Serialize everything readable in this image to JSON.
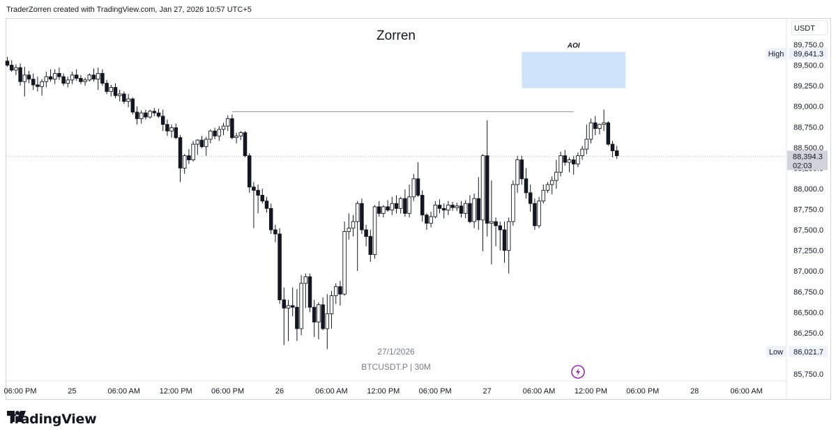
{
  "header": {
    "caption": "TraderZorren created with TradingView.com, Jan 27, 2026 10:57 UTC+5"
  },
  "footer": {
    "brand": "TradingView",
    "brand_icon": "tradingview-logo-icon"
  },
  "colors": {
    "candle": "#131722",
    "candle_up_fill": "#ffffff",
    "aoi_fill": "#cfe3fb",
    "price_tag_bg": "#d1d4dc",
    "level_line": "#8a8e99",
    "alert_icon": "#9c27b0"
  },
  "chart_data": {
    "type": "candlestick",
    "title": "Zorren",
    "symbol": "BTCUSDT.P | 30M",
    "date_label": "27/1/2026",
    "currency": "USDT",
    "ylim": [
      85600,
      89900
    ],
    "y_ticks": [
      "89,750.0",
      "89,500.0",
      "89,250.0",
      "89,000.0",
      "88,750.0",
      "88,500.0",
      "88,250.0",
      "88,000.0",
      "87,750.0",
      "87,500.0",
      "87,250.0",
      "87,000.0",
      "86,750.0",
      "86,500.0",
      "86,250.0",
      "86,000.0",
      "85,750.0"
    ],
    "y_tick_values": [
      89750,
      89500,
      89250,
      89000,
      88750,
      88500,
      88250,
      88000,
      87750,
      87500,
      87250,
      87000,
      86750,
      86500,
      86250,
      86000,
      85750
    ],
    "x_ticks": [
      "06:00 PM",
      "25",
      "06:00 AM",
      "12:00 PM",
      "06:00 PM",
      "26",
      "06:00 AM",
      "12:00 PM",
      "06:00 PM",
      "27",
      "06:00 AM",
      "12:00 PM",
      "06:00 PM",
      "28",
      "06:00 AM"
    ],
    "x_tick_index": [
      0,
      12,
      24,
      36,
      48,
      60,
      72,
      84,
      96,
      108,
      120,
      132,
      144,
      156,
      168
    ],
    "high": {
      "label": "High",
      "value": "89,641.3",
      "price": 89641.3
    },
    "low": {
      "label": "Low",
      "value": "86,021.7",
      "price": 86021.7
    },
    "last": {
      "value": "88,394.3",
      "countdown": "02:03",
      "price": 88394.3
    },
    "aoi": {
      "label": "AOI",
      "price_top": 89660,
      "price_bottom": 89220,
      "start_index": 119,
      "end_index": 143
    },
    "level_line": {
      "price": 88935,
      "start_index": 52,
      "end_index": 131
    },
    "candles": [
      {
        "o": 89550,
        "h": 89600,
        "l": 89480,
        "c": 89500
      },
      {
        "o": 89500,
        "h": 89560,
        "l": 89420,
        "c": 89440
      },
      {
        "o": 89440,
        "h": 89510,
        "l": 89380,
        "c": 89470
      },
      {
        "o": 89470,
        "h": 89520,
        "l": 89250,
        "c": 89300
      },
      {
        "o": 89300,
        "h": 89480,
        "l": 89120,
        "c": 89380
      },
      {
        "o": 89380,
        "h": 89430,
        "l": 89280,
        "c": 89330
      },
      {
        "o": 89330,
        "h": 89400,
        "l": 89200,
        "c": 89260
      },
      {
        "o": 89260,
        "h": 89360,
        "l": 89180,
        "c": 89240
      },
      {
        "o": 89240,
        "h": 89330,
        "l": 89130,
        "c": 89300
      },
      {
        "o": 89300,
        "h": 89420,
        "l": 89230,
        "c": 89360
      },
      {
        "o": 89360,
        "h": 89450,
        "l": 89300,
        "c": 89330
      },
      {
        "o": 89330,
        "h": 89450,
        "l": 89270,
        "c": 89400
      },
      {
        "o": 89400,
        "h": 89470,
        "l": 89320,
        "c": 89360
      },
      {
        "o": 89360,
        "h": 89400,
        "l": 89250,
        "c": 89280
      },
      {
        "o": 89280,
        "h": 89360,
        "l": 89230,
        "c": 89320
      },
      {
        "o": 89320,
        "h": 89420,
        "l": 89270,
        "c": 89380
      },
      {
        "o": 89380,
        "h": 89450,
        "l": 89310,
        "c": 89340
      },
      {
        "o": 89340,
        "h": 89380,
        "l": 89270,
        "c": 89300
      },
      {
        "o": 89300,
        "h": 89350,
        "l": 89250,
        "c": 89320
      },
      {
        "o": 89320,
        "h": 89400,
        "l": 89300,
        "c": 89380
      },
      {
        "o": 89380,
        "h": 89460,
        "l": 89300,
        "c": 89330
      },
      {
        "o": 89330,
        "h": 89470,
        "l": 89200,
        "c": 89400
      },
      {
        "o": 89400,
        "h": 89450,
        "l": 89250,
        "c": 89280
      },
      {
        "o": 89280,
        "h": 89320,
        "l": 89150,
        "c": 89180
      },
      {
        "o": 89180,
        "h": 89260,
        "l": 89120,
        "c": 89230
      },
      {
        "o": 89230,
        "h": 89280,
        "l": 89100,
        "c": 89130
      },
      {
        "o": 89130,
        "h": 89200,
        "l": 89060,
        "c": 89150
      },
      {
        "o": 89150,
        "h": 89180,
        "l": 89030,
        "c": 89060
      },
      {
        "o": 89060,
        "h": 89150,
        "l": 88990,
        "c": 89090
      },
      {
        "o": 89090,
        "h": 89110,
        "l": 88900,
        "c": 88930
      },
      {
        "o": 88930,
        "h": 89000,
        "l": 88780,
        "c": 88850
      },
      {
        "o": 88850,
        "h": 88950,
        "l": 88790,
        "c": 88920
      },
      {
        "o": 88920,
        "h": 88960,
        "l": 88840,
        "c": 88870
      },
      {
        "o": 88870,
        "h": 88960,
        "l": 88850,
        "c": 88940
      },
      {
        "o": 88940,
        "h": 88980,
        "l": 88880,
        "c": 88920
      },
      {
        "o": 88920,
        "h": 88970,
        "l": 88860,
        "c": 88880
      },
      {
        "o": 88880,
        "h": 88960,
        "l": 88700,
        "c": 88780
      },
      {
        "o": 88780,
        "h": 88840,
        "l": 88640,
        "c": 88700
      },
      {
        "o": 88700,
        "h": 88780,
        "l": 88620,
        "c": 88740
      },
      {
        "o": 88740,
        "h": 88790,
        "l": 88600,
        "c": 88620
      },
      {
        "o": 88620,
        "h": 88650,
        "l": 88080,
        "c": 88250
      },
      {
        "o": 88250,
        "h": 88420,
        "l": 88180,
        "c": 88400
      },
      {
        "o": 88400,
        "h": 88480,
        "l": 88300,
        "c": 88350
      },
      {
        "o": 88350,
        "h": 88580,
        "l": 88330,
        "c": 88540
      },
      {
        "o": 88540,
        "h": 88600,
        "l": 88410,
        "c": 88590
      },
      {
        "o": 88590,
        "h": 88640,
        "l": 88490,
        "c": 88510
      },
      {
        "o": 88510,
        "h": 88630,
        "l": 88400,
        "c": 88600
      },
      {
        "o": 88600,
        "h": 88720,
        "l": 88550,
        "c": 88700
      },
      {
        "o": 88700,
        "h": 88740,
        "l": 88600,
        "c": 88640
      },
      {
        "o": 88640,
        "h": 88760,
        "l": 88580,
        "c": 88720
      },
      {
        "o": 88720,
        "h": 88800,
        "l": 88650,
        "c": 88760
      },
      {
        "o": 88760,
        "h": 88890,
        "l": 88700,
        "c": 88850
      },
      {
        "o": 88850,
        "h": 88900,
        "l": 88600,
        "c": 88620
      },
      {
        "o": 88620,
        "h": 88680,
        "l": 88550,
        "c": 88640
      },
      {
        "o": 88640,
        "h": 88700,
        "l": 88590,
        "c": 88680
      },
      {
        "o": 88680,
        "h": 88700,
        "l": 88380,
        "c": 88400
      },
      {
        "o": 88400,
        "h": 88430,
        "l": 87950,
        "c": 88020
      },
      {
        "o": 88020,
        "h": 88080,
        "l": 87520,
        "c": 87980
      },
      {
        "o": 87980,
        "h": 88050,
        "l": 87700,
        "c": 87920
      },
      {
        "o": 87920,
        "h": 88000,
        "l": 87820,
        "c": 87850
      },
      {
        "o": 87850,
        "h": 87900,
        "l": 87710,
        "c": 87760
      },
      {
        "o": 87760,
        "h": 87820,
        "l": 87450,
        "c": 87500
      },
      {
        "o": 87500,
        "h": 87560,
        "l": 87350,
        "c": 87450
      },
      {
        "o": 87450,
        "h": 87520,
        "l": 86600,
        "c": 86650
      },
      {
        "o": 86650,
        "h": 86800,
        "l": 86100,
        "c": 86550
      },
      {
        "o": 86550,
        "h": 86650,
        "l": 86150,
        "c": 86580
      },
      {
        "o": 86580,
        "h": 86800,
        "l": 86450,
        "c": 86560
      },
      {
        "o": 86560,
        "h": 86780,
        "l": 86150,
        "c": 86300
      },
      {
        "o": 86300,
        "h": 86950,
        "l": 86220,
        "c": 86850
      },
      {
        "o": 86850,
        "h": 86970,
        "l": 86550,
        "c": 86930
      },
      {
        "o": 86930,
        "h": 86970,
        "l": 86500,
        "c": 86560
      },
      {
        "o": 86560,
        "h": 86650,
        "l": 86200,
        "c": 86380
      },
      {
        "o": 86380,
        "h": 86620,
        "l": 86170,
        "c": 86590
      },
      {
        "o": 86590,
        "h": 86680,
        "l": 86280,
        "c": 86300
      },
      {
        "o": 86300,
        "h": 86720,
        "l": 86050,
        "c": 86480
      },
      {
        "o": 86480,
        "h": 86760,
        "l": 86300,
        "c": 86700
      },
      {
        "o": 86700,
        "h": 86850,
        "l": 86600,
        "c": 86810
      },
      {
        "o": 86810,
        "h": 86880,
        "l": 86580,
        "c": 86720
      },
      {
        "o": 86720,
        "h": 87600,
        "l": 86700,
        "c": 87480
      },
      {
        "o": 87480,
        "h": 87700,
        "l": 87380,
        "c": 87520
      },
      {
        "o": 87520,
        "h": 87680,
        "l": 87420,
        "c": 87600
      },
      {
        "o": 87600,
        "h": 87850,
        "l": 87000,
        "c": 87820
      },
      {
        "o": 87820,
        "h": 87880,
        "l": 87450,
        "c": 87500
      },
      {
        "o": 87500,
        "h": 87560,
        "l": 87300,
        "c": 87420
      },
      {
        "o": 87420,
        "h": 87500,
        "l": 87110,
        "c": 87200
      },
      {
        "o": 87200,
        "h": 87800,
        "l": 87150,
        "c": 87780
      },
      {
        "o": 87780,
        "h": 87850,
        "l": 87660,
        "c": 87700
      },
      {
        "o": 87700,
        "h": 87800,
        "l": 87650,
        "c": 87780
      },
      {
        "o": 87780,
        "h": 87860,
        "l": 87720,
        "c": 87740
      },
      {
        "o": 87740,
        "h": 87900,
        "l": 87680,
        "c": 87820
      },
      {
        "o": 87820,
        "h": 87920,
        "l": 87700,
        "c": 87760
      },
      {
        "o": 87760,
        "h": 87900,
        "l": 87700,
        "c": 87880
      },
      {
        "o": 87880,
        "h": 87990,
        "l": 87660,
        "c": 87700
      },
      {
        "o": 87700,
        "h": 88050,
        "l": 87650,
        "c": 87900
      },
      {
        "o": 87900,
        "h": 88180,
        "l": 87850,
        "c": 88120
      },
      {
        "o": 88120,
        "h": 88320,
        "l": 87900,
        "c": 87920
      },
      {
        "o": 87920,
        "h": 87980,
        "l": 87600,
        "c": 87680
      },
      {
        "o": 87680,
        "h": 87700,
        "l": 87500,
        "c": 87580
      },
      {
        "o": 87580,
        "h": 87720,
        "l": 87530,
        "c": 87660
      },
      {
        "o": 87660,
        "h": 87850,
        "l": 87640,
        "c": 87800
      },
      {
        "o": 87800,
        "h": 87870,
        "l": 87700,
        "c": 87760
      },
      {
        "o": 87760,
        "h": 87820,
        "l": 87640,
        "c": 87740
      },
      {
        "o": 87740,
        "h": 87850,
        "l": 87680,
        "c": 87800
      },
      {
        "o": 87800,
        "h": 87840,
        "l": 87730,
        "c": 87770
      },
      {
        "o": 87770,
        "h": 87830,
        "l": 87730,
        "c": 87790
      },
      {
        "o": 87790,
        "h": 87850,
        "l": 87650,
        "c": 87700
      },
      {
        "o": 87700,
        "h": 87860,
        "l": 87640,
        "c": 87820
      },
      {
        "o": 87820,
        "h": 87920,
        "l": 87580,
        "c": 87600
      },
      {
        "o": 87600,
        "h": 87940,
        "l": 87520,
        "c": 87880
      },
      {
        "o": 87880,
        "h": 88140,
        "l": 87500,
        "c": 87620
      },
      {
        "o": 87620,
        "h": 88420,
        "l": 87240,
        "c": 88400
      },
      {
        "o": 88400,
        "h": 88830,
        "l": 87420,
        "c": 87580
      },
      {
        "o": 87580,
        "h": 88100,
        "l": 87080,
        "c": 87600
      },
      {
        "o": 87600,
        "h": 87650,
        "l": 87300,
        "c": 87550
      },
      {
        "o": 87550,
        "h": 87600,
        "l": 87250,
        "c": 87500
      },
      {
        "o": 87500,
        "h": 87600,
        "l": 87100,
        "c": 87250
      },
      {
        "o": 87250,
        "h": 87650,
        "l": 86970,
        "c": 87600
      },
      {
        "o": 87600,
        "h": 88100,
        "l": 87550,
        "c": 88050
      },
      {
        "o": 88050,
        "h": 88400,
        "l": 87950,
        "c": 88350
      },
      {
        "o": 88350,
        "h": 88400,
        "l": 88050,
        "c": 88120
      },
      {
        "o": 88120,
        "h": 88250,
        "l": 87880,
        "c": 87950
      },
      {
        "o": 87950,
        "h": 88050,
        "l": 87720,
        "c": 87820
      },
      {
        "o": 87820,
        "h": 87880,
        "l": 87500,
        "c": 87550
      },
      {
        "o": 87550,
        "h": 87900,
        "l": 87520,
        "c": 87850
      },
      {
        "o": 87850,
        "h": 88050,
        "l": 87820,
        "c": 87980
      },
      {
        "o": 87980,
        "h": 88080,
        "l": 87950,
        "c": 88050
      },
      {
        "o": 88050,
        "h": 88150,
        "l": 87930,
        "c": 88100
      },
      {
        "o": 88100,
        "h": 88350,
        "l": 88000,
        "c": 88200
      },
      {
        "o": 88200,
        "h": 88450,
        "l": 88150,
        "c": 88400
      },
      {
        "o": 88400,
        "h": 88470,
        "l": 88280,
        "c": 88320
      },
      {
        "o": 88320,
        "h": 88380,
        "l": 88200,
        "c": 88350
      },
      {
        "o": 88350,
        "h": 88400,
        "l": 88170,
        "c": 88300
      },
      {
        "o": 88300,
        "h": 88440,
        "l": 88260,
        "c": 88400
      },
      {
        "o": 88400,
        "h": 88520,
        "l": 88350,
        "c": 88480
      },
      {
        "o": 88480,
        "h": 88780,
        "l": 88420,
        "c": 88600
      },
      {
        "o": 88600,
        "h": 88850,
        "l": 88550,
        "c": 88800
      },
      {
        "o": 88800,
        "h": 88880,
        "l": 88650,
        "c": 88730
      },
      {
        "o": 88730,
        "h": 88790,
        "l": 88660,
        "c": 88780
      },
      {
        "o": 88780,
        "h": 88960,
        "l": 88700,
        "c": 88800
      },
      {
        "o": 88800,
        "h": 88820,
        "l": 88520,
        "c": 88540
      },
      {
        "o": 88540,
        "h": 88580,
        "l": 88380,
        "c": 88460
      },
      {
        "o": 88460,
        "h": 88520,
        "l": 88360,
        "c": 88400
      }
    ]
  }
}
